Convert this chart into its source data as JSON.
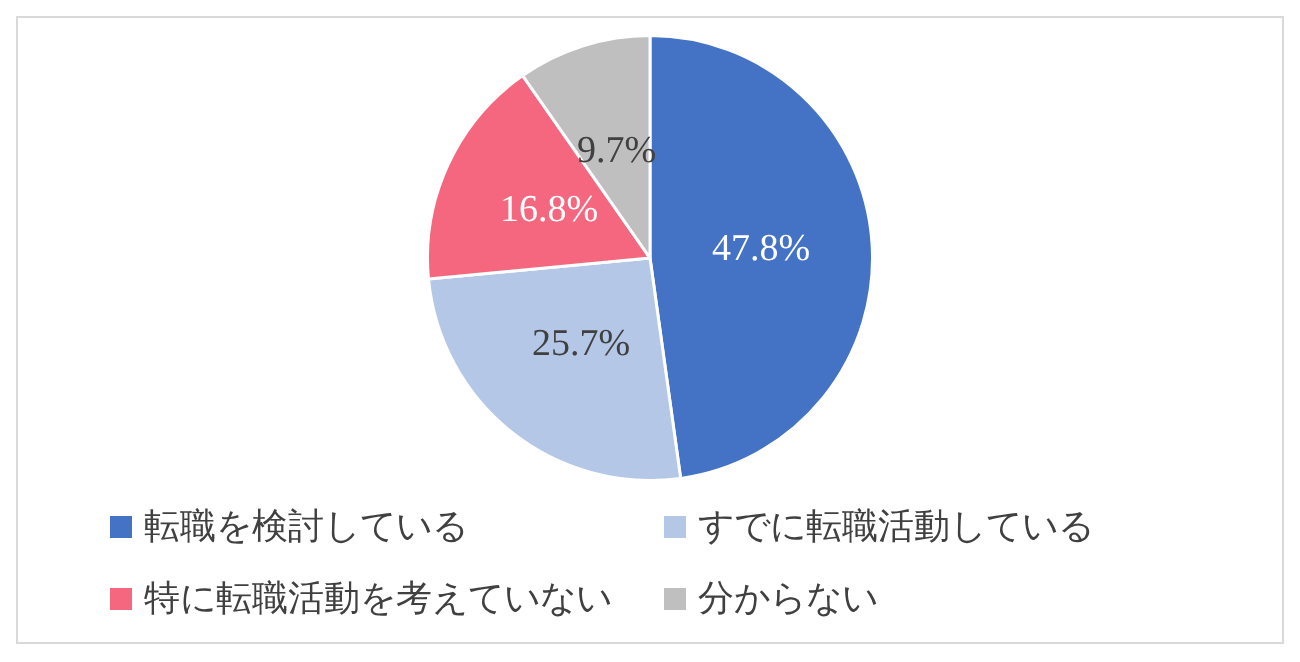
{
  "chart_data": {
    "type": "pie",
    "categories": [
      "転職を検討している",
      "すでに転職活動している",
      "特に転職活動を考えていない",
      "分からない"
    ],
    "values": [
      47.8,
      25.7,
      16.8,
      9.7
    ],
    "colors": [
      "#4472c4",
      "#b4c7e7",
      "#f4677f",
      "#bfbfbf"
    ],
    "value_labels": [
      "47.8%",
      "25.7%",
      "16.8%",
      "9.7%"
    ],
    "legend": "bottom"
  }
}
